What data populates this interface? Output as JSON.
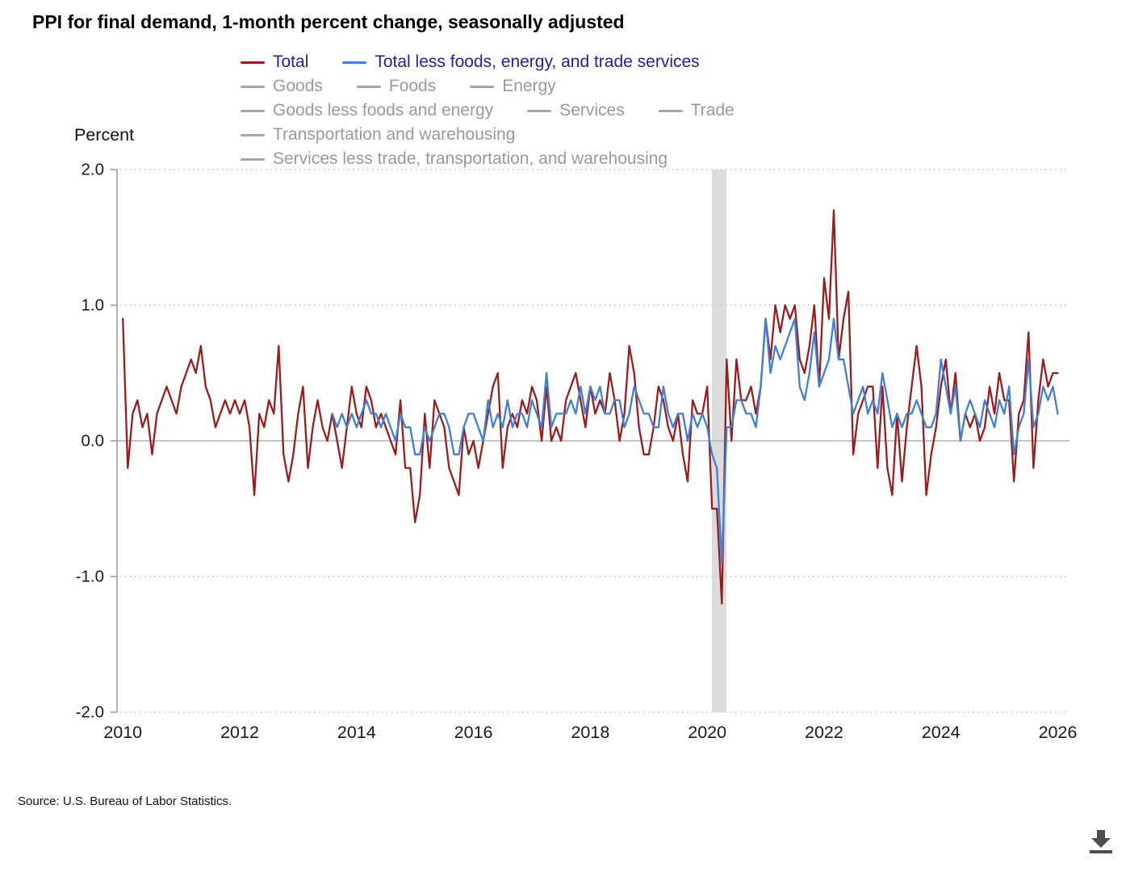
{
  "page": {
    "title": "PPI for final demand, 1-month percent change, seasonally adjusted"
  },
  "footer": {
    "source": "Source: U.S. Bureau of Labor Statistics."
  },
  "colors": {
    "total_line": "#9e1b1b",
    "core_line": "#3e7fd8",
    "active_label": "#22229e",
    "inactive_label": "#9a9a9a",
    "inactive_swatch": "#a6a6a6",
    "grid_dotted": "#c3c3c3",
    "zero_line": "#b3b3b3",
    "spine": "#999999",
    "recession_band": "#dcdcdc",
    "tick_text": "#1a1a1a",
    "download_icon": "#4d4d4d"
  },
  "legend": {
    "rows": [
      [
        {
          "label": "Total",
          "swatch": "#9e1b1b",
          "active": true
        },
        {
          "label": "Total less foods, energy, and trade services",
          "swatch": "#3e7fd8",
          "active": true
        }
      ],
      [
        {
          "label": "Goods",
          "swatch": "#a6a6a6",
          "active": false
        },
        {
          "label": "Foods",
          "swatch": "#a6a6a6",
          "active": false
        },
        {
          "label": "Energy",
          "swatch": "#a6a6a6",
          "active": false
        }
      ],
      [
        {
          "label": "Goods less foods and energy",
          "swatch": "#a6a6a6",
          "active": false
        },
        {
          "label": "Services",
          "swatch": "#a6a6a6",
          "active": false
        },
        {
          "label": "Trade",
          "swatch": "#a6a6a6",
          "active": false
        }
      ],
      [
        {
          "label": "Transportation and warehousing",
          "swatch": "#a6a6a6",
          "active": false
        }
      ],
      [
        {
          "label": "Services less trade, transportation, and warehousing",
          "swatch": "#a6a6a6",
          "active": false
        }
      ]
    ]
  },
  "chart_data": {
    "type": "line",
    "title": "PPI for final demand, 1-month percent change, seasonally adjusted",
    "xlabel": "",
    "ylabel": "Percent",
    "ylim": [
      -2.0,
      2.0
    ],
    "xlim": [
      2009.9,
      2026.2
    ],
    "x_ticks": [
      2010,
      2012,
      2014,
      2016,
      2018,
      2020,
      2022,
      2024,
      2026
    ],
    "y_ticks": [
      2.0,
      1.0,
      0.0,
      -1.0,
      -2.0
    ],
    "grid": "dotted-horizontal",
    "legend_position": "top",
    "recession_band": {
      "start": 2020.08,
      "end": 2020.33
    },
    "frequency": "monthly",
    "units": "percent change, 1-month, seasonally adjusted",
    "series": [
      {
        "name": "Total",
        "color": "#9e1b1b",
        "start_year": 2010,
        "start_month": 1,
        "values": [
          0.9,
          -0.2,
          0.2,
          0.3,
          0.1,
          0.2,
          -0.1,
          0.2,
          0.3,
          0.4,
          0.3,
          0.2,
          0.4,
          0.5,
          0.6,
          0.5,
          0.7,
          0.4,
          0.3,
          0.1,
          0.2,
          0.3,
          0.2,
          0.3,
          0.2,
          0.3,
          0.1,
          -0.4,
          0.2,
          0.1,
          0.3,
          0.2,
          0.7,
          -0.1,
          -0.3,
          -0.1,
          0.2,
          0.4,
          -0.2,
          0.1,
          0.3,
          0.1,
          0.0,
          0.2,
          0.0,
          -0.2,
          0.1,
          0.4,
          0.2,
          0.1,
          0.4,
          0.3,
          0.1,
          0.2,
          0.1,
          0.0,
          -0.1,
          0.3,
          -0.2,
          -0.2,
          -0.6,
          -0.4,
          0.2,
          -0.2,
          0.3,
          0.2,
          0.1,
          -0.2,
          -0.3,
          -0.4,
          0.1,
          -0.1,
          0.0,
          -0.2,
          0.0,
          0.2,
          0.4,
          0.5,
          -0.2,
          0.1,
          0.2,
          0.1,
          0.3,
          0.2,
          0.4,
          0.3,
          0.0,
          0.4,
          0.0,
          0.1,
          0.0,
          0.3,
          0.4,
          0.5,
          0.3,
          0.1,
          0.4,
          0.2,
          0.3,
          0.2,
          0.5,
          0.3,
          0.0,
          0.2,
          0.7,
          0.5,
          0.1,
          -0.1,
          -0.1,
          0.1,
          0.4,
          0.3,
          0.1,
          0.0,
          0.2,
          -0.1,
          -0.3,
          0.3,
          0.2,
          0.2,
          0.4,
          -0.5,
          -0.5,
          -1.2,
          0.6,
          0.0,
          0.6,
          0.3,
          0.3,
          0.4,
          0.2,
          0.4,
          0.9,
          0.6,
          1.0,
          0.8,
          1.0,
          0.9,
          1.0,
          0.6,
          0.5,
          0.7,
          1.0,
          0.4,
          1.2,
          0.9,
          1.7,
          0.6,
          0.9,
          1.1,
          -0.1,
          0.2,
          0.3,
          0.4,
          0.4,
          -0.2,
          0.4,
          -0.2,
          -0.4,
          0.2,
          -0.3,
          0.1,
          0.4,
          0.7,
          0.4,
          -0.4,
          -0.1,
          0.1,
          0.4,
          0.6,
          0.2,
          0.5,
          0.0,
          0.2,
          0.1,
          0.2,
          0.0,
          0.1,
          0.4,
          0.2,
          0.5,
          0.3,
          0.3,
          -0.3,
          0.2,
          0.3,
          0.8,
          -0.2,
          0.3,
          0.6,
          0.4,
          0.5,
          0.5
        ]
      },
      {
        "name": "Total less foods, energy, and trade services",
        "color": "#3e7fd8",
        "start_year": 2013,
        "start_month": 8,
        "values": [
          0.2,
          0.1,
          0.2,
          0.1,
          0.2,
          0.1,
          0.2,
          0.3,
          0.2,
          0.2,
          0.1,
          0.2,
          0.1,
          0.0,
          0.2,
          0.1,
          0.1,
          -0.1,
          -0.1,
          0.1,
          0.0,
          0.1,
          0.2,
          0.2,
          0.1,
          -0.1,
          -0.1,
          0.1,
          0.2,
          0.2,
          0.1,
          0.0,
          0.3,
          0.1,
          0.2,
          0.1,
          0.3,
          0.1,
          0.2,
          0.2,
          0.1,
          0.3,
          0.2,
          0.1,
          0.5,
          0.1,
          0.2,
          0.2,
          0.2,
          0.3,
          0.2,
          0.4,
          0.2,
          0.4,
          0.3,
          0.4,
          0.2,
          0.2,
          0.3,
          0.3,
          0.1,
          0.2,
          0.4,
          0.3,
          0.2,
          0.2,
          0.1,
          0.1,
          0.4,
          0.2,
          0.1,
          0.2,
          0.2,
          0.0,
          0.2,
          0.1,
          0.2,
          0.1,
          -0.1,
          -0.2,
          -0.9,
          0.1,
          0.1,
          0.3,
          0.3,
          0.2,
          0.2,
          0.1,
          0.4,
          0.9,
          0.5,
          0.7,
          0.6,
          0.7,
          0.8,
          0.9,
          0.4,
          0.3,
          0.5,
          0.8,
          0.4,
          0.5,
          0.6,
          0.9,
          0.6,
          0.6,
          0.4,
          0.2,
          0.3,
          0.4,
          0.2,
          0.3,
          0.2,
          0.5,
          0.3,
          0.1,
          0.2,
          0.1,
          0.2,
          0.2,
          0.3,
          0.2,
          0.1,
          0.1,
          0.2,
          0.6,
          0.4,
          0.2,
          0.4,
          0.0,
          0.2,
          0.3,
          0.2,
          0.1,
          0.3,
          0.2,
          0.1,
          0.3,
          0.2,
          0.4,
          -0.1,
          0.1,
          0.2,
          0.6,
          0.1,
          0.2,
          0.4,
          0.3,
          0.4,
          0.2
        ]
      }
    ],
    "inactive_series": [
      "Goods",
      "Foods",
      "Energy",
      "Goods less foods and energy",
      "Services",
      "Trade",
      "Transportation and warehousing",
      "Services less trade, transportation, and warehousing"
    ]
  }
}
